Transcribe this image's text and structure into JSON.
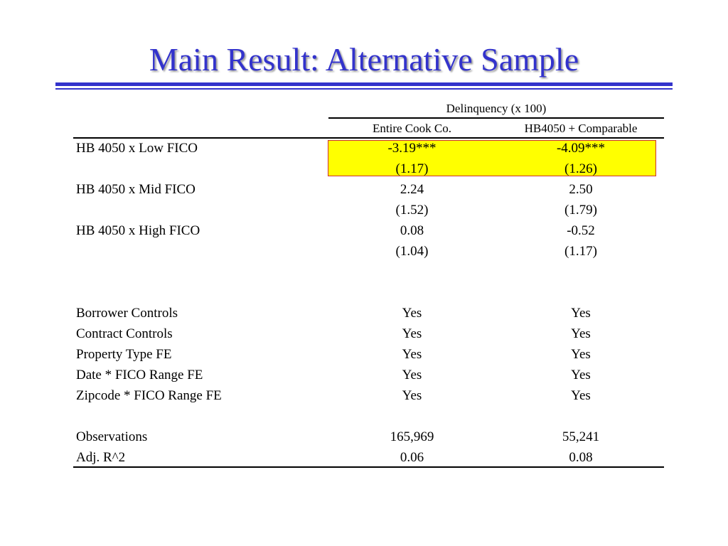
{
  "slide": {
    "title": "Main Result: Alternative Sample"
  },
  "table": {
    "group_header": "Delinquency (x 100)",
    "columns": [
      "Entire Cook Co.",
      "HB4050 + Comparable"
    ],
    "coefficients": [
      {
        "label": "HB 4050 x Low FICO",
        "estimates": [
          "-3.19***",
          "-4.09***"
        ],
        "std_errors": [
          "(1.17)",
          "(1.26)"
        ]
      },
      {
        "label": "HB 4050 x Mid FICO",
        "estimates": [
          "2.24",
          "2.50"
        ],
        "std_errors": [
          "(1.52)",
          "(1.79)"
        ]
      },
      {
        "label": "HB 4050 x High FICO",
        "estimates": [
          "0.08",
          "-0.52"
        ],
        "std_errors": [
          "(1.04)",
          "(1.17)"
        ]
      }
    ],
    "controls": [
      {
        "label": "Borrower Controls",
        "values": [
          "Yes",
          "Yes"
        ]
      },
      {
        "label": "Contract Controls",
        "values": [
          "Yes",
          "Yes"
        ]
      },
      {
        "label": "Property Type FE",
        "values": [
          "Yes",
          "Yes"
        ]
      },
      {
        "label": "Date * FICO Range FE",
        "values": [
          "Yes",
          "Yes"
        ]
      },
      {
        "label": "Zipcode * FICO Range FE",
        "values": [
          "Yes",
          "Yes"
        ]
      }
    ],
    "stats": [
      {
        "label": "Observations",
        "values": [
          "165,969",
          "55,241"
        ]
      },
      {
        "label": "Adj. R^2",
        "values": [
          "0.06",
          "0.08"
        ]
      }
    ]
  },
  "colors": {
    "title": "#3333cc",
    "highlight_fill": "#ffff00",
    "highlight_border": "#cc3333"
  }
}
